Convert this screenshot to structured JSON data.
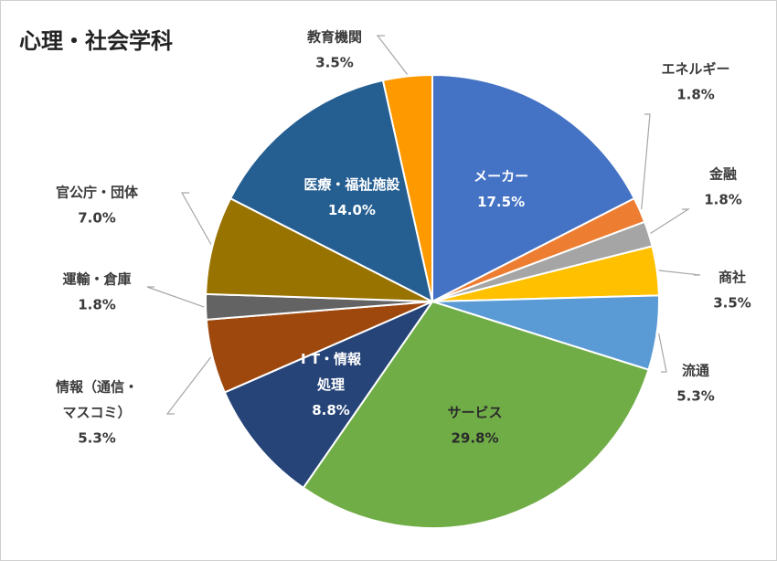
{
  "chart_data": {
    "type": "pie",
    "title": "心理・社会学科",
    "slices": [
      {
        "label": [
          "メーカー"
        ],
        "value": 17.5,
        "value_label": "17.5%",
        "color": "#4472c4",
        "inside": true
      },
      {
        "label": [
          "エネルギー"
        ],
        "value": 1.8,
        "value_label": "1.8%",
        "color": "#ed7d31",
        "inside": false
      },
      {
        "label": [
          "金融"
        ],
        "value": 1.8,
        "value_label": "1.8%",
        "color": "#a5a5a5",
        "inside": false
      },
      {
        "label": [
          "商社"
        ],
        "value": 3.5,
        "value_label": "3.5%",
        "color": "#ffc000",
        "inside": false
      },
      {
        "label": [
          "流通"
        ],
        "value": 5.3,
        "value_label": "5.3%",
        "color": "#5b9bd5",
        "inside": false
      },
      {
        "label": [
          "サービス"
        ],
        "value": 29.8,
        "value_label": "29.8%",
        "color": "#70ad47",
        "inside": true,
        "dark_text": true
      },
      {
        "label": [
          "I T・情報",
          "処理"
        ],
        "value": 8.8,
        "value_label": "8.8%",
        "color": "#264478",
        "inside": true
      },
      {
        "label": [
          "情報（通信・",
          "マスコミ）"
        ],
        "value": 5.3,
        "value_label": "5.3%",
        "color": "#9e480e",
        "inside": false
      },
      {
        "label": [
          "運輸・倉庫"
        ],
        "value": 1.8,
        "value_label": "1.8%",
        "color": "#636363",
        "inside": false
      },
      {
        "label": [
          "官公庁・団体"
        ],
        "value": 7.0,
        "value_label": "7.0%",
        "color": "#997300",
        "inside": false
      },
      {
        "label": [
          "医療・福祉施設"
        ],
        "value": 14.0,
        "value_label": "14.0%",
        "color": "#255e91",
        "inside": true
      },
      {
        "label": [
          "教育機関"
        ],
        "value": 3.5,
        "value_label": "3.5%",
        "color": "#ff9900",
        "inside": false
      }
    ]
  }
}
